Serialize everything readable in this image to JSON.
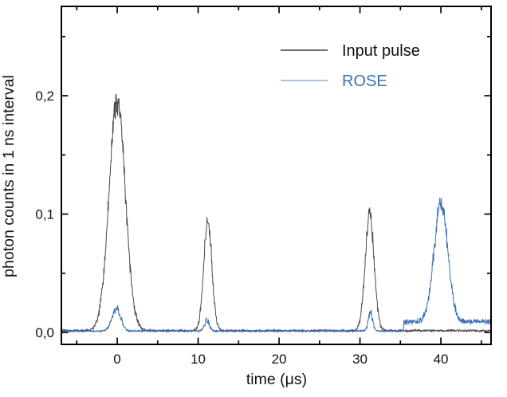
{
  "figure": {
    "background": "#ffffff",
    "axis_color": "#000000",
    "text_color": "#111111"
  },
  "chart_data": {
    "type": "line",
    "title": "",
    "xlabel": "time (μs)",
    "ylabel": "photon counts in 1 ns interval",
    "grid": false,
    "legend_position": "top-right",
    "x_axis": {
      "range": [
        -6.9,
        46.2
      ],
      "major_ticks": [
        0,
        10,
        20,
        30,
        40
      ],
      "major_tick_labels": [
        "0",
        "10",
        "20",
        "30",
        "40"
      ],
      "minor_ticks": [
        -5,
        5,
        15,
        25,
        35,
        45
      ]
    },
    "y_axis": {
      "range": [
        -0.0101,
        0.2755
      ],
      "major_ticks": [
        0.0,
        0.1,
        0.2
      ],
      "major_tick_labels": [
        "0,0",
        "0,1",
        "0,2"
      ],
      "minor_ticks": [
        0.05,
        0.15,
        0.25
      ]
    },
    "noise_scale": 0.001,
    "sample_step_us": 0.04,
    "series": [
      {
        "name": "Input pulse",
        "color": "#4a4a4a",
        "legend_line_color": "#3c3c3c",
        "baseline": 0.0015,
        "elevated_floor": null,
        "peaks": [
          {
            "t": 0.0,
            "height": 0.195,
            "sigma": 1.0
          },
          {
            "t": 11.2,
            "height": 0.093,
            "sigma": 0.5
          },
          {
            "t": 31.2,
            "height": 0.098,
            "sigma": 0.55
          }
        ]
      },
      {
        "name": "ROSE",
        "color": "#3d6fb6",
        "legend_line_color": "#8fadd9",
        "baseline": 0.0012,
        "elevated_floor": {
          "from": 35.4,
          "level": 0.009
        },
        "peaks": [
          {
            "t": -0.1,
            "height": 0.019,
            "sigma": 0.55
          },
          {
            "t": 11.1,
            "height": 0.009,
            "sigma": 0.3
          },
          {
            "t": 31.3,
            "height": 0.015,
            "sigma": 0.28
          },
          {
            "t": 40.0,
            "height": 0.1,
            "sigma": 0.85
          }
        ]
      }
    ]
  }
}
